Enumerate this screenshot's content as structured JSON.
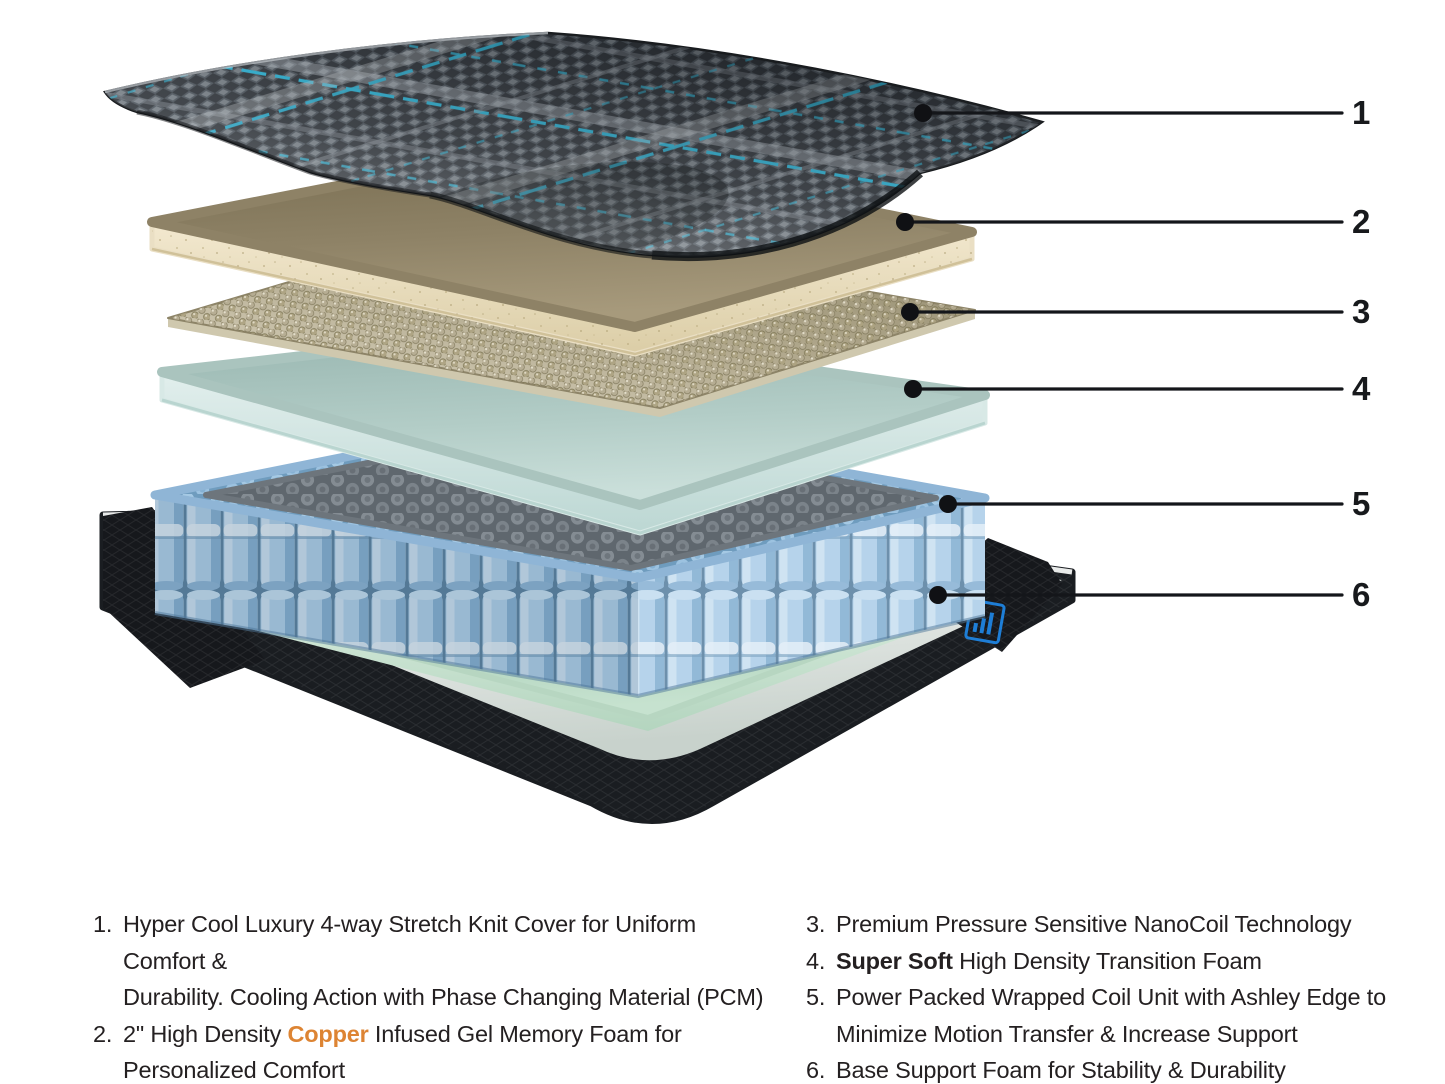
{
  "diagram": {
    "description": "Exploded side view of mattress layers",
    "callouts": [
      {
        "label": "1",
        "target": "knit-cover"
      },
      {
        "label": "2",
        "target": "gel-memory-foam"
      },
      {
        "label": "3",
        "target": "nanocoil-layer"
      },
      {
        "label": "4",
        "target": "transition-foam"
      },
      {
        "label": "5",
        "target": "wrapped-coil-unit"
      },
      {
        "label": "6",
        "target": "base-support-foam"
      }
    ]
  },
  "legend": {
    "left": [
      {
        "num": "1.",
        "parts": [
          {
            "text": "Hyper Cool Luxury 4-way Stretch Knit Cover for Uniform Comfort &\nDurability. Cooling Action with Phase Changing Material (PCM)"
          }
        ]
      },
      {
        "num": "2.",
        "parts": [
          {
            "text": "2\" High Density "
          },
          {
            "text": "Copper",
            "style": "copper"
          },
          {
            "text": " Infused Gel Memory Foam for\nPersonalized Comfort"
          }
        ]
      }
    ],
    "right": [
      {
        "num": "3.",
        "parts": [
          {
            "text": "Premium Pressure Sensitive NanoCoil Technology"
          }
        ]
      },
      {
        "num": "4.",
        "parts": [
          {
            "text": "Super Soft",
            "style": "bold"
          },
          {
            "text": " High Density Transition Foam"
          }
        ]
      },
      {
        "num": "5.",
        "parts": [
          {
            "text": "Power Packed Wrapped Coil Unit with Ashley Edge to\nMinimize Motion Transfer & Increase Support"
          }
        ]
      },
      {
        "num": "6.",
        "parts": [
          {
            "text": "Base Support Foam for Stability & Durability"
          }
        ]
      }
    ]
  },
  "colors": {
    "text": "#242021",
    "copper": "#DD8433",
    "cyan_accent": "#29B5D8",
    "knit_dark": "#2C3137",
    "memory_foam_top": "#968A6D",
    "memory_foam_edge": "#EADFC4",
    "nanocoil_beige": "#B3AA8F",
    "transition_foam": "#B3CDC7",
    "coil_blue": "#AECFE9",
    "coil_top_gray": "#7A8288",
    "base_foam_green": "#AFD2BC",
    "base_shell_black": "#1A1D21",
    "logo_blue": "#1E7ED6",
    "base_deck_white": "#ECEFEE"
  }
}
